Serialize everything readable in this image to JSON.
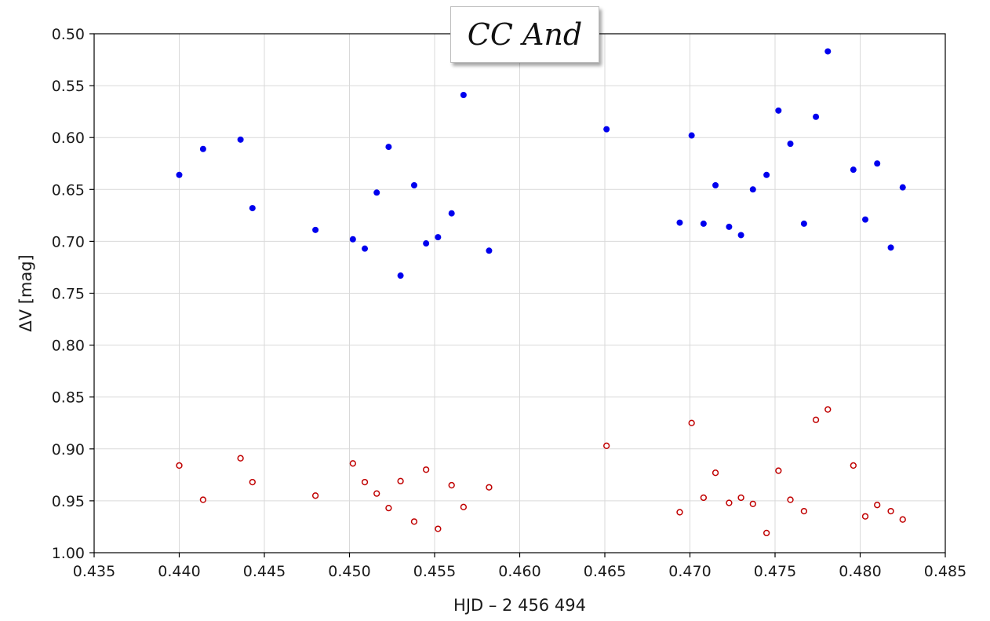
{
  "chart_data": {
    "type": "scatter",
    "title": "CC And",
    "xlabel": "HJD – 2 456 494",
    "ylabel": "ΔV  [mag]",
    "xlim": [
      0.435,
      0.485
    ],
    "ylim": [
      0.5,
      1.0
    ],
    "y_inverted": true,
    "grid": true,
    "legend": "none",
    "x_ticks": [
      "0.435",
      "0.440",
      "0.445",
      "0.450",
      "0.455",
      "0.460",
      "0.465",
      "0.470",
      "0.475",
      "0.480",
      "0.485"
    ],
    "y_ticks": [
      "0.50",
      "0.55",
      "0.60",
      "0.65",
      "0.70",
      "0.75",
      "0.80",
      "0.85",
      "0.90",
      "0.95",
      "1.00"
    ],
    "series": [
      {
        "marker": "filled-circle",
        "color": "#0000ee",
        "points": [
          [
            0.44,
            0.636
          ],
          [
            0.4414,
            0.611
          ],
          [
            0.4436,
            0.602
          ],
          [
            0.4443,
            0.668
          ],
          [
            0.448,
            0.689
          ],
          [
            0.4502,
            0.698
          ],
          [
            0.4509,
            0.707
          ],
          [
            0.4516,
            0.653
          ],
          [
            0.4523,
            0.609
          ],
          [
            0.453,
            0.733
          ],
          [
            0.4538,
            0.646
          ],
          [
            0.4545,
            0.702
          ],
          [
            0.4552,
            0.696
          ],
          [
            0.456,
            0.673
          ],
          [
            0.4567,
            0.559
          ],
          [
            0.4582,
            0.709
          ],
          [
            0.4651,
            0.592
          ],
          [
            0.4694,
            0.682
          ],
          [
            0.4701,
            0.598
          ],
          [
            0.4708,
            0.683
          ],
          [
            0.4715,
            0.646
          ],
          [
            0.4723,
            0.686
          ],
          [
            0.473,
            0.694
          ],
          [
            0.4737,
            0.65
          ],
          [
            0.4745,
            0.636
          ],
          [
            0.4752,
            0.574
          ],
          [
            0.4759,
            0.606
          ],
          [
            0.4767,
            0.683
          ],
          [
            0.4774,
            0.58
          ],
          [
            0.4781,
            0.517
          ],
          [
            0.4796,
            0.631
          ],
          [
            0.4803,
            0.679
          ],
          [
            0.481,
            0.625
          ],
          [
            0.4818,
            0.706
          ],
          [
            0.4825,
            0.648
          ]
        ]
      },
      {
        "marker": "open-circle",
        "color": "#c00000",
        "points": [
          [
            0.44,
            0.916
          ],
          [
            0.4414,
            0.949
          ],
          [
            0.4436,
            0.909
          ],
          [
            0.4443,
            0.932
          ],
          [
            0.448,
            0.945
          ],
          [
            0.4502,
            0.914
          ],
          [
            0.4509,
            0.932
          ],
          [
            0.4516,
            0.943
          ],
          [
            0.4523,
            0.957
          ],
          [
            0.453,
            0.931
          ],
          [
            0.4538,
            0.97
          ],
          [
            0.4545,
            0.92
          ],
          [
            0.4552,
            0.977
          ],
          [
            0.456,
            0.935
          ],
          [
            0.4567,
            0.956
          ],
          [
            0.4582,
            0.937
          ],
          [
            0.4651,
            0.897
          ],
          [
            0.4694,
            0.961
          ],
          [
            0.4701,
            0.875
          ],
          [
            0.4708,
            0.947
          ],
          [
            0.4715,
            0.923
          ],
          [
            0.4723,
            0.952
          ],
          [
            0.473,
            0.947
          ],
          [
            0.4737,
            0.953
          ],
          [
            0.4745,
            0.981
          ],
          [
            0.4752,
            0.921
          ],
          [
            0.4759,
            0.949
          ],
          [
            0.4767,
            0.96
          ],
          [
            0.4774,
            0.872
          ],
          [
            0.4781,
            0.862
          ],
          [
            0.4796,
            0.916
          ],
          [
            0.4803,
            0.965
          ],
          [
            0.481,
            0.954
          ],
          [
            0.4818,
            0.96
          ],
          [
            0.4825,
            0.968
          ]
        ]
      }
    ]
  }
}
